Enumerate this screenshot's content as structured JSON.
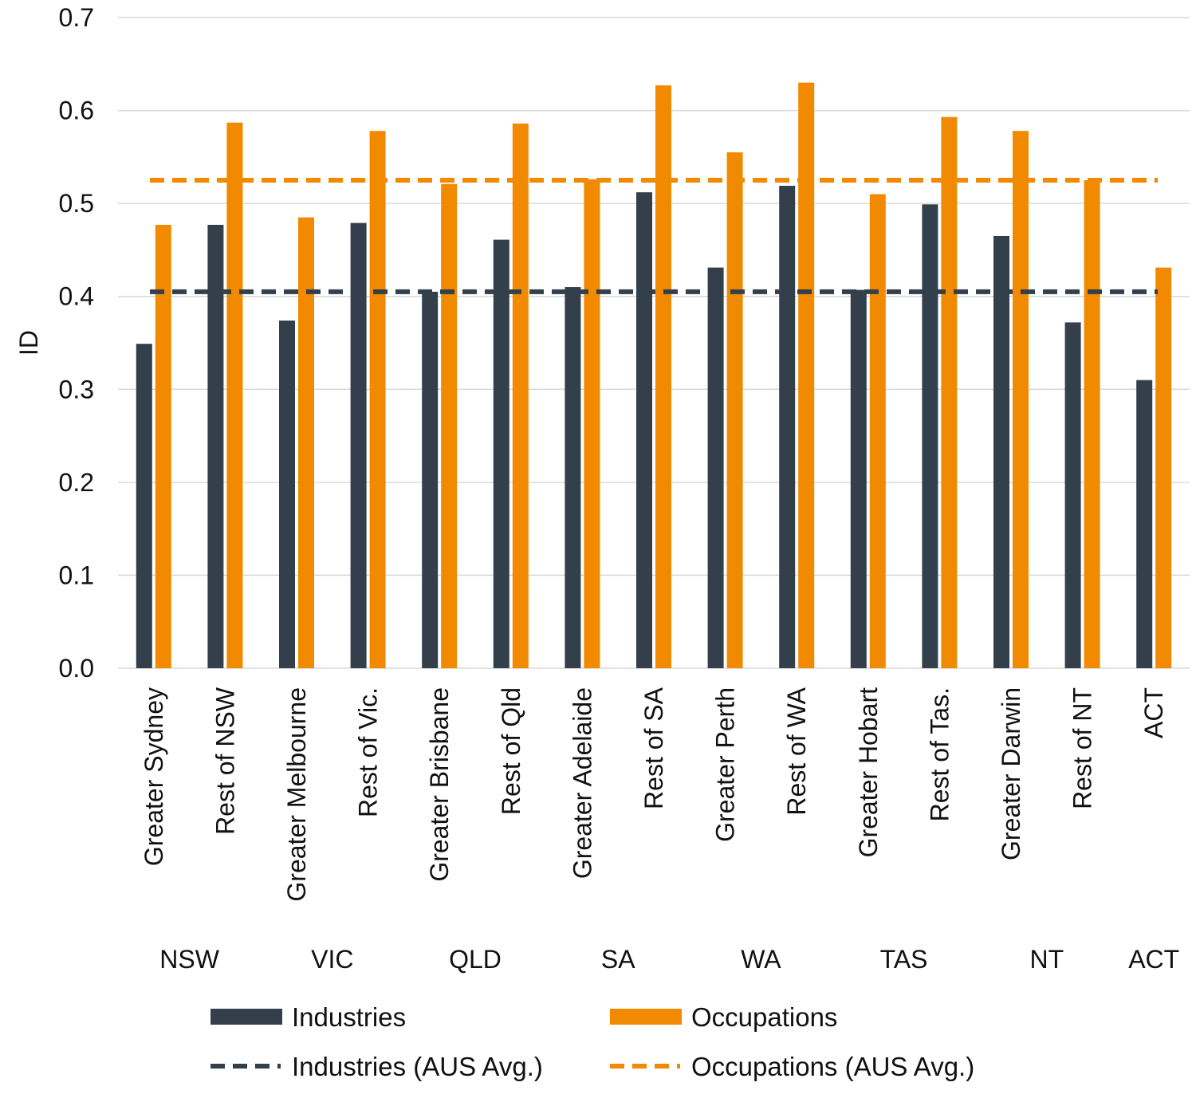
{
  "chart_data": {
    "type": "bar",
    "ylabel": "ID",
    "ylim": [
      0,
      0.7
    ],
    "yticks": [
      "0.0",
      "0.1",
      "0.2",
      "0.3",
      "0.4",
      "0.5",
      "0.6",
      "0.7"
    ],
    "grid": true,
    "legend_position": "bottom",
    "categories": [
      "Greater Sydney",
      "Rest of NSW",
      "Greater Melbourne",
      "Rest of Vic.",
      "Greater Brisbane",
      "Rest of Qld",
      "Greater Adelaide",
      "Rest of SA",
      "Greater Perth",
      "Rest of WA",
      "Greater Hobart",
      "Rest of Tas.",
      "Greater Darwin",
      "Rest of NT",
      "ACT"
    ],
    "groups": [
      {
        "label": "NSW",
        "span": [
          0,
          1
        ]
      },
      {
        "label": "VIC",
        "span": [
          2,
          3
        ]
      },
      {
        "label": "QLD",
        "span": [
          4,
          5
        ]
      },
      {
        "label": "SA",
        "span": [
          6,
          7
        ]
      },
      {
        "label": "WA",
        "span": [
          8,
          9
        ]
      },
      {
        "label": "TAS",
        "span": [
          10,
          11
        ]
      },
      {
        "label": "NT",
        "span": [
          12,
          13
        ]
      },
      {
        "label": "ACT",
        "span": [
          14,
          14
        ]
      }
    ],
    "series": [
      {
        "name": "Industries",
        "color": "#333f4a",
        "values": [
          0.349,
          0.477,
          0.374,
          0.479,
          0.405,
          0.461,
          0.41,
          0.512,
          0.431,
          0.519,
          0.407,
          0.499,
          0.465,
          0.372,
          0.31
        ]
      },
      {
        "name": "Occupations",
        "color": "#f28a00",
        "values": [
          0.477,
          0.587,
          0.485,
          0.578,
          0.521,
          0.586,
          0.526,
          0.627,
          0.555,
          0.63,
          0.51,
          0.593,
          0.578,
          0.525,
          0.431
        ]
      }
    ],
    "reference_lines": [
      {
        "name": "Industries (AUS Avg.)",
        "value": 0.405,
        "color": "#333f4a",
        "style": "dashed"
      },
      {
        "name": "Occupations (AUS Avg.)",
        "value": 0.525,
        "color": "#f28a00",
        "style": "dashed"
      }
    ]
  }
}
